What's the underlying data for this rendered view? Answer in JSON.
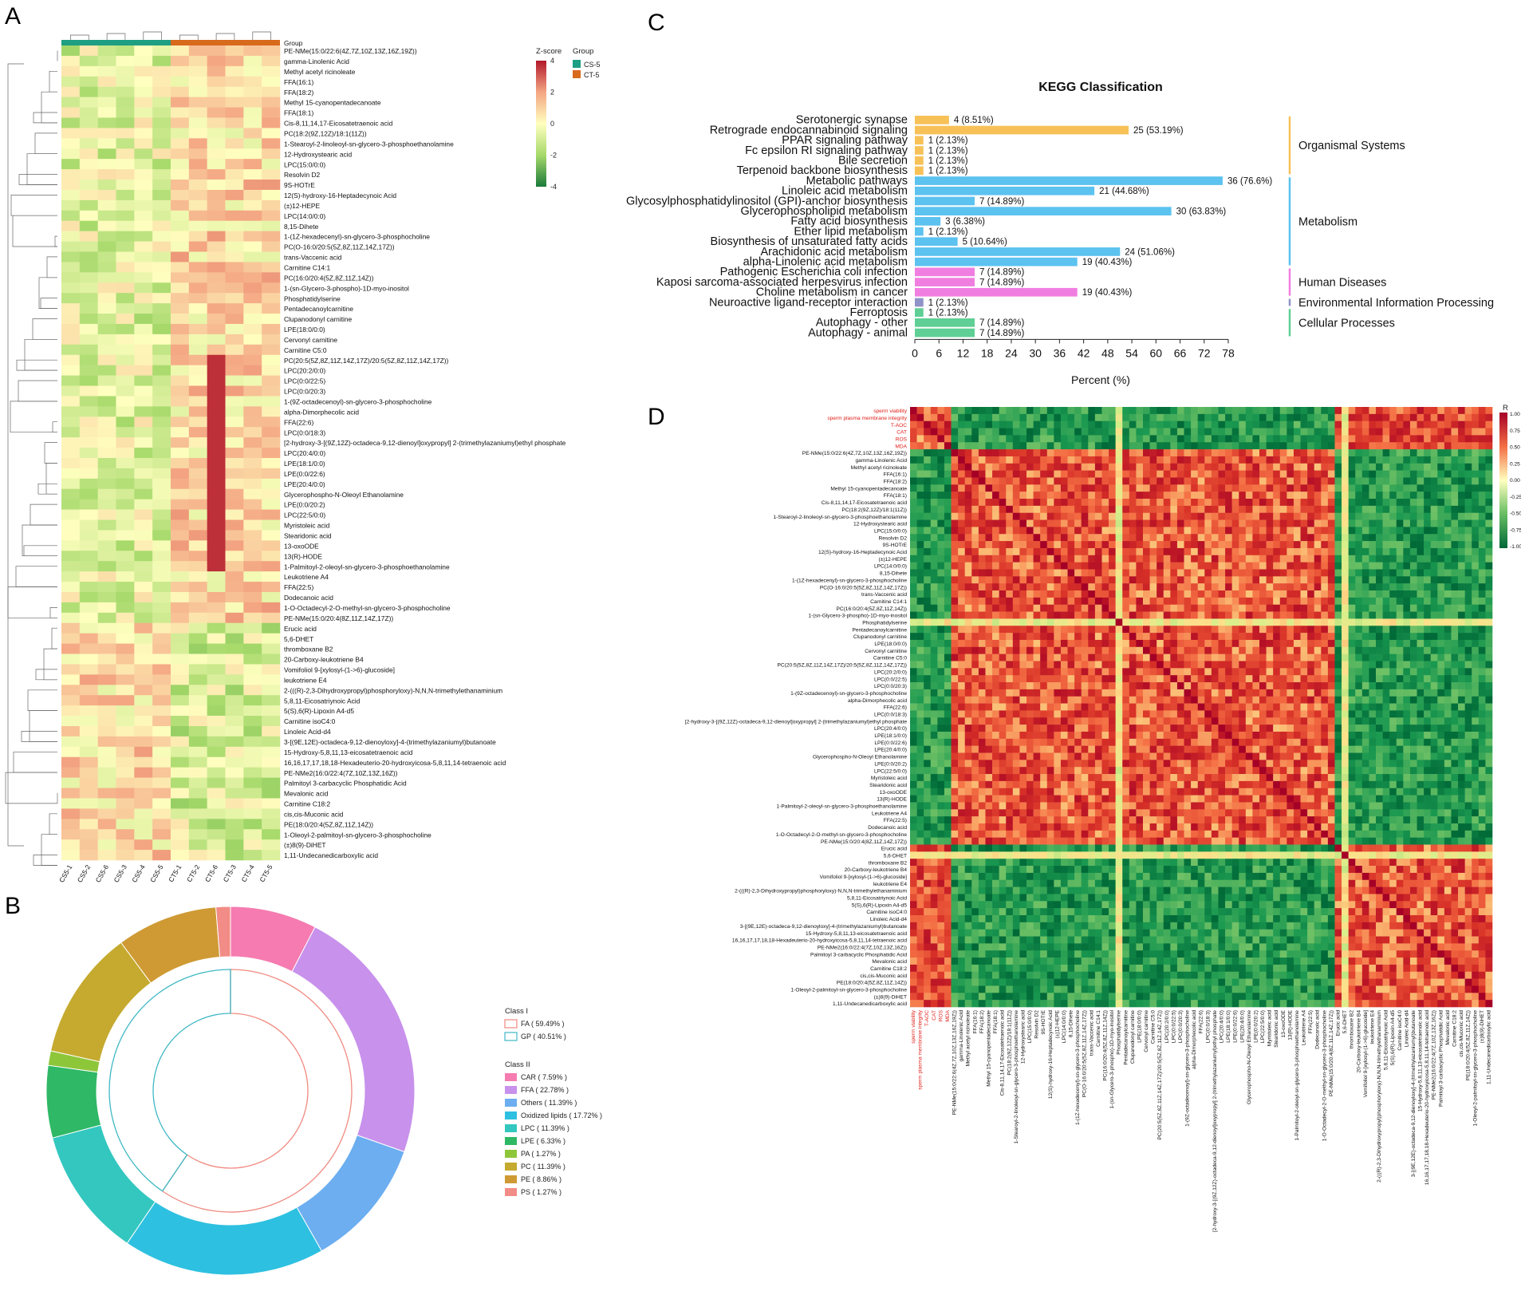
{
  "panels": {
    "a": "A",
    "b": "B",
    "c": "C",
    "d": "D"
  },
  "chart_data": [
    {
      "panel": "A",
      "type": "heatmap",
      "title": "",
      "group_bar_label": "Group",
      "zscore_legend": {
        "title": "Z-score",
        "ticks": [
          "4",
          "2",
          "0",
          "-2",
          "-4"
        ],
        "colors": [
          "#b2182b",
          "#f4a582",
          "#ffffbf",
          "#a6d96a",
          "#1a7a3a"
        ]
      },
      "group_legend": {
        "title": "Group",
        "items": [
          {
            "label": "CS-5",
            "color": "#1e9e82"
          },
          {
            "label": "CT-5",
            "color": "#d86a1c"
          }
        ]
      },
      "columns": [
        "CS5-1",
        "CS5-2",
        "CS5-6",
        "CS5-3",
        "CS5-4",
        "CS5-5",
        "CT5-1",
        "CT5-2",
        "CT5-6",
        "CT5-3",
        "CT5-4",
        "CT5-5"
      ],
      "rows": [
        "PE-NMe(15:0/22:6(4Z,7Z,10Z,13Z,16Z,19Z))",
        "gamma-Linolenic Acid",
        "Methyl acetyl ricinoleate",
        "FFA(16:1)",
        "FFA(18:2)",
        "Methyl 15-cyanopentadecanoate",
        "FFA(18:1)",
        "Cis-8,11,14,17-Eicosatetraenoic acid",
        "PC(18:2(9Z,12Z)/18:1(11Z))",
        "1-Stearoyl-2-linoleoyl-sn-glycero-3-phosphoethanolamine",
        "12-Hydroxystearic acid",
        "LPC(15:0/0:0)",
        "Resolvin D2",
        "9S-HOTrE",
        "12(S)-hydroxy-16-Heptadecynoic Acid",
        "(±)12-HEPE",
        "LPC(14:0/0:0)",
        "8,15-Dihete",
        "1-(1Z-hexadecenyl)-sn-glycero-3-phosphocholine",
        "PC(O-16:0/20:5(5Z,8Z,11Z,14Z,17Z))",
        "trans-Vaccenic acid",
        "Carnitine C14:1",
        "PC(16:0/20:4(5Z,8Z,11Z,14Z))",
        "1-(sn-Glycero-3-phospho)-1D-myo-inositol",
        "Phosphatidylserine",
        "Pentadecanoylcarnitine",
        "Clupanodonyl carnitine",
        "LPE(18:0/0:0)",
        "Cervonyl carnitine",
        "Carnitine C5:0",
        "PC(20:5(5Z,8Z,11Z,14Z,17Z)/20:5(5Z,8Z,11Z,14Z,17Z))",
        "LPC(20:2/0:0)",
        "LPC(0:0/22:5)",
        "LPC(0:0/20:3)",
        "1-(9Z-octadecenoyl)-sn-glycero-3-phosphocholine",
        "alpha-Dimorphecolic acid",
        "FFA(22:6)",
        "LPC(0:0/18:3)",
        "[2-hydroxy-3-[(9Z,12Z)-octadeca-9,12-dienoyl]oxypropyl] 2-(trimethylazaniumyl)ethyl phosphate",
        "LPC(20:4/0:0)",
        "LPE(18:1/0:0)",
        "LPE(0:0/22:6)",
        "LPE(20:4/0:0)",
        "Glycerophospho-N-Oleoyl Ethanolamine",
        "LPE(0:0/20:2)",
        "LPC(22:5/0:0)",
        "Myristoleic acid",
        "Stearidonic acid",
        "13-oxoODE",
        "13(R)-HODE",
        "1-Palmitoyl-2-oleoyl-sn-glycero-3-phosphoethanolamine",
        "Leukotriene A4",
        "FFA(22:5)",
        "Dodecanoic acid",
        "1-O-Octadecyl-2-O-methyl-sn-glycero-3-phosphocholine",
        "PE-NMe(15:0/20:4(8Z,11Z,14Z,17Z))",
        "Erucic acid",
        "5,6-DHET",
        "thromboxane B2",
        "20-Carboxy-leukotriene B4",
        "Vomifoliol 9-[xylosyl-(1->6)-glucoside]",
        "leukotriene E4",
        "2-(((R)-2,3-Dihydroxypropyl)phosphoryloxy)-N,N,N-trimethylethanaminium",
        "5,8,11-Eicosatriynoic Acid",
        "5(S),6(R)-Lipoxin A4-d5",
        "Carnitine isoC4:0",
        "Linoleic Acid-d4",
        "3-[(9E,12E)-octadeca-9,12-dienoyloxy]-4-(trimethylazaniumyl)butanoate",
        "15-Hydroxy-5,8,11,13-eicosatetraenoic acid",
        "16,16,17,17,18,18-Hexadeuterio-20-hydroxyicosa-5,8,11,14-tetraenoic acid",
        "PE-NMe2(16:0/22:4(7Z,10Z,13Z,16Z))",
        "Palmitoyl 3-carbacyclic Phosphatidic Acid",
        "Mevalonic acid",
        "Carnitine C18:2",
        "cis,cis-Muconic acid",
        "PE(18:0/20:4(5Z,8Z,11Z,14Z))",
        "1-Oleoyl-2-palmitoyl-sn-glycero-3-phosphocholine",
        "(±)8(9)-DiHET",
        "1,11-Undecanedicarboxylic acid"
      ]
    },
    {
      "panel": "B",
      "type": "pie",
      "class_i": {
        "title": "Class I",
        "items": [
          {
            "label": "FA ( 59.49% )",
            "value": 59.49,
            "color": "#f08a80"
          },
          {
            "label": "GP ( 40.51% )",
            "value": 40.51,
            "color": "#3fb8c4"
          }
        ]
      },
      "class_ii": {
        "title": "Class II",
        "items": [
          {
            "label": "CAR ( 7.59% )",
            "value": 7.59,
            "color": "#f57bb0"
          },
          {
            "label": "FFA ( 22.78% )",
            "value": 22.78,
            "color": "#c891ec"
          },
          {
            "label": "Others ( 11.39% )",
            "value": 11.39,
            "color": "#6caef0"
          },
          {
            "label": "Oxidized lipids ( 17.72% )",
            "value": 17.72,
            "color": "#2ec0e0"
          },
          {
            "label": "LPC ( 11.39% )",
            "value": 11.39,
            "color": "#33c7c0"
          },
          {
            "label": "LPE ( 6.33% )",
            "value": 6.33,
            "color": "#2fb865"
          },
          {
            "label": "PA ( 1.27% )",
            "value": 1.27,
            "color": "#8ec63a"
          },
          {
            "label": "PC ( 11.39% )",
            "value": 11.39,
            "color": "#c5aa2f"
          },
          {
            "label": "PE ( 8.86% )",
            "value": 8.86,
            "color": "#cf9a34"
          },
          {
            "label": "PS ( 1.27% )",
            "value": 1.27,
            "color": "#f28c86"
          }
        ]
      }
    },
    {
      "panel": "C",
      "type": "bar",
      "title": "KEGG Classification",
      "xlabel": "Percent (%)",
      "xlim": [
        0,
        78
      ],
      "xticks": [
        "0",
        "6",
        "12",
        "18",
        "24",
        "30",
        "36",
        "42",
        "48",
        "54",
        "60",
        "66",
        "72",
        "78"
      ],
      "categories": [
        "Serotonergic synapse",
        "Retrograde endocannabinoid signaling",
        "PPAR signaling pathway",
        "Fc epsilon RI signaling pathway",
        "Bile secretion",
        "Terpenoid backbone biosynthesis",
        "Metabolic pathways",
        "Linoleic acid metabolism",
        "Glycosylphosphatidylinositol (GPI)-anchor biosynthesis",
        "Glycerophospholipid metabolism",
        "Fatty acid biosynthesis",
        "Ether lipid metabolism",
        "Biosynthesis of unsaturated fatty acids",
        "Arachidonic acid metabolism",
        "alpha-Linolenic acid metabolism",
        "Pathogenic Escherichia coli infection",
        "Kaposi sarcoma-associated herpesvirus infection",
        "Choline metabolism in cancer",
        "Neuroactive ligand-receptor interaction",
        "Ferroptosis",
        "Autophagy - other",
        "Autophagy - animal"
      ],
      "values": [
        8.51,
        53.19,
        2.13,
        2.13,
        2.13,
        2.13,
        76.6,
        44.68,
        14.89,
        63.83,
        6.38,
        2.13,
        10.64,
        51.06,
        40.43,
        14.89,
        14.89,
        40.43,
        2.13,
        2.13,
        14.89,
        14.89
      ],
      "value_labels": [
        "4 (8.51%)",
        "25 (53.19%)",
        "1 (2.13%)",
        "1 (2.13%)",
        "1 (2.13%)",
        "1 (2.13%)",
        "36 (76.6%)",
        "21 (44.68%)",
        "7 (14.89%)",
        "30 (63.83%)",
        "3 (6.38%)",
        "1 (2.13%)",
        "5 (10.64%)",
        "24 (51.06%)",
        "19 (40.43%)",
        "7 (14.89%)",
        "7 (14.89%)",
        "19 (40.43%)",
        "1 (2.13%)",
        "1 (2.13%)",
        "7 (14.89%)",
        "7 (14.89%)"
      ],
      "groups": [
        {
          "label": "Organismal Systems",
          "start": 0,
          "end": 5,
          "color": "#f7c158"
        },
        {
          "label": "Metabolism",
          "start": 6,
          "end": 14,
          "color": "#5cc2ef"
        },
        {
          "label": "Human Diseases",
          "start": 15,
          "end": 17,
          "color": "#f07ee0"
        },
        {
          "label": "Environmental Information Processing",
          "start": 18,
          "end": 18,
          "color": "#8f93c8"
        },
        {
          "label": "Cellular Processes",
          "start": 19,
          "end": 21,
          "color": "#5fcf95"
        }
      ]
    },
    {
      "panel": "D",
      "type": "heatmap",
      "title": "",
      "legend_title": "R",
      "legend_ticks": [
        "1.00",
        "0.75",
        "0.50",
        "0.25",
        "0.00",
        "-0.25",
        "-0.50",
        "-0.75",
        "-1.00"
      ],
      "red_labels": [
        "sperm viability",
        "sperm plasma membrane integrity",
        "T-AOC",
        "CAT",
        "ROS",
        "MDA"
      ],
      "metabolite_labels_from": "panel A rows"
    }
  ]
}
